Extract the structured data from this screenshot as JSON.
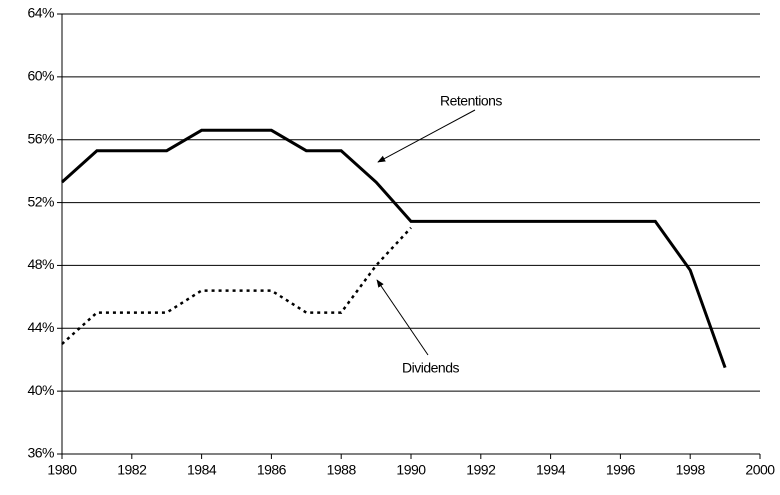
{
  "chart_data": {
    "type": "line",
    "x": [
      1980,
      1981,
      1982,
      1983,
      1984,
      1985,
      1986,
      1987,
      1988,
      1989,
      1990,
      1991,
      1992,
      1993,
      1994,
      1995,
      1996,
      1997,
      1998,
      1999
    ],
    "series": [
      {
        "name": "Retentions",
        "color": "#000000",
        "dash": "solid",
        "values": [
          53.3,
          55.3,
          55.3,
          55.3,
          56.6,
          56.6,
          56.6,
          55.3,
          55.3,
          53.3,
          50.8,
          50.8,
          50.8,
          50.8,
          50.8,
          50.8,
          50.8,
          50.8,
          47.7,
          41.5
        ]
      },
      {
        "name": "Dividends",
        "color": "#000000",
        "dash": "dotted",
        "values": [
          43.0,
          45.0,
          45.0,
          45.0,
          46.4,
          46.4,
          46.4,
          45.0,
          45.0,
          48.0,
          50.4,
          null,
          null,
          null,
          null,
          null,
          null,
          null,
          null,
          null
        ]
      }
    ],
    "xlim": [
      1980,
      2000
    ],
    "xticks": [
      1980,
      1982,
      1984,
      1986,
      1988,
      1990,
      1992,
      1994,
      1996,
      1998,
      2000
    ],
    "ylim": [
      36,
      64
    ],
    "yticks": [
      {
        "value": 36,
        "label": "36%"
      },
      {
        "value": 40,
        "label": "40%"
      },
      {
        "value": 44,
        "label": "44%"
      },
      {
        "value": 48,
        "label": "48%"
      },
      {
        "value": 52,
        "label": "52%"
      },
      {
        "value": 56,
        "label": "56%"
      },
      {
        "value": 60,
        "label": "60%"
      },
      {
        "value": 64,
        "label": "64%"
      }
    ],
    "grid": true
  }
}
